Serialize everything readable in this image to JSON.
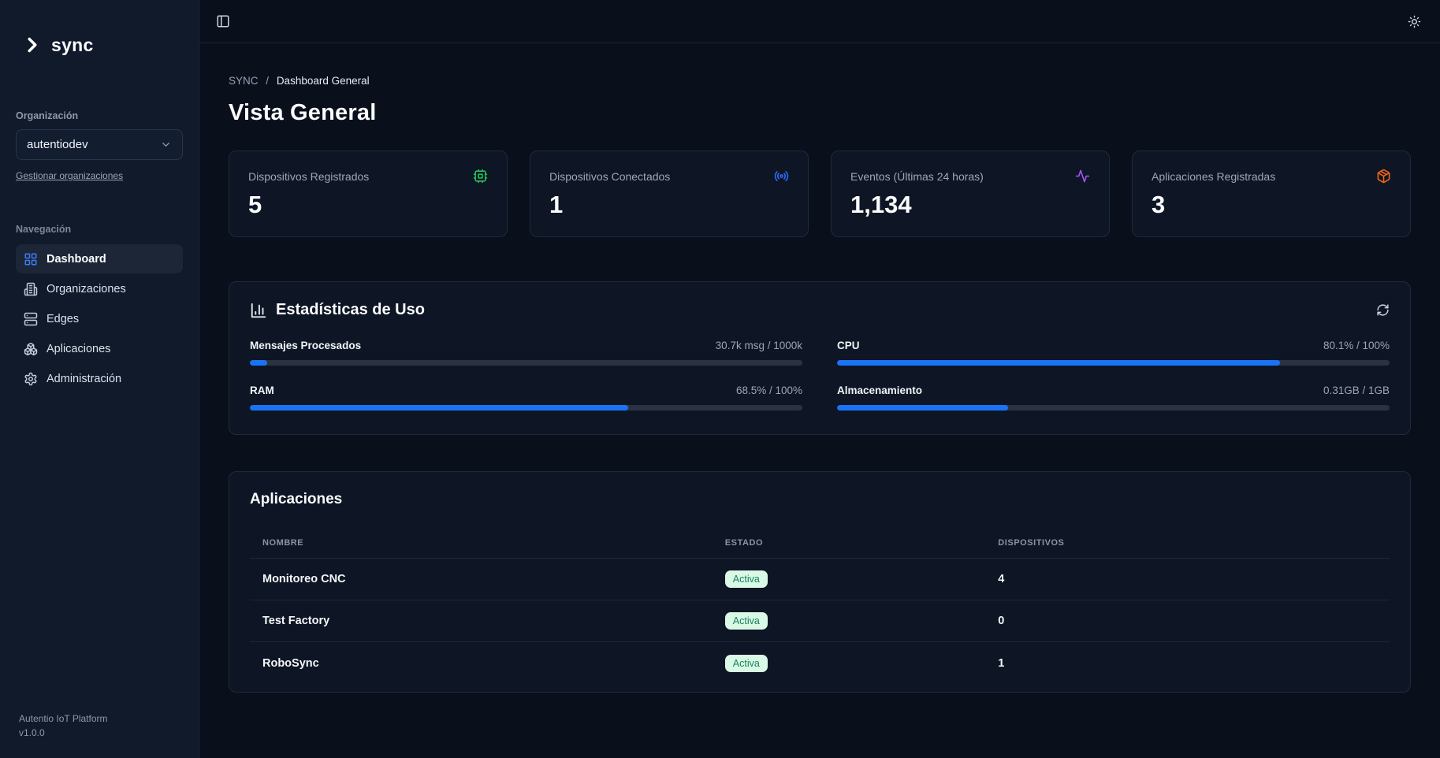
{
  "colors": {
    "bg_main": "#0a0f1c",
    "bg_sidebar": "#111a2b",
    "bg_card": "#0e1524",
    "accent_blue": "#1a73f5",
    "icon_green": "#22c55e",
    "icon_blue": "#2d6ef5",
    "icon_purple": "#a855f7",
    "icon_orange": "#f4661c",
    "badge_bg": "#d9f9e6",
    "badge_text": "#1a7f5a"
  },
  "sidebar": {
    "logo_text": "sync",
    "org_label": "Organización",
    "org_selected": "autentiodev",
    "manage_link": "Gestionar organizaciones",
    "nav_label": "Navegación",
    "nav_items": [
      {
        "label": "Dashboard",
        "icon": "layout-grid-icon",
        "active": true
      },
      {
        "label": "Organizaciones",
        "icon": "building-icon",
        "active": false
      },
      {
        "label": "Edges",
        "icon": "server-icon",
        "active": false
      },
      {
        "label": "Aplicaciones",
        "icon": "boxes-icon",
        "active": false
      },
      {
        "label": "Administración",
        "icon": "gear-icon",
        "active": false
      }
    ],
    "footer_line1": "Autentio IoT Platform",
    "footer_line2": "v1.0.0"
  },
  "breadcrumb": {
    "root": "SYNC",
    "separator": "/",
    "current": "Dashboard General"
  },
  "page_title": "Vista General",
  "stat_cards": [
    {
      "label": "Dispositivos Registrados",
      "value": "5",
      "icon": "cpu-chip-icon",
      "color": "#22c55e"
    },
    {
      "label": "Dispositivos Conectados",
      "value": "1",
      "icon": "radio-signal-icon",
      "color": "#2d6ef5"
    },
    {
      "label": "Eventos (Últimas 24 horas)",
      "value": "1,134",
      "icon": "activity-icon",
      "color": "#a855f7"
    },
    {
      "label": "Aplicaciones Registradas",
      "value": "3",
      "icon": "package-icon",
      "color": "#f4661c"
    }
  ],
  "usage": {
    "title": "Estadísticas de Uso",
    "metrics": [
      {
        "label": "Mensajes Procesados",
        "value_text": "30.7k msg / 1000k",
        "percent": 3.1
      },
      {
        "label": "CPU",
        "value_text": "80.1% / 100%",
        "percent": 80.1
      },
      {
        "label": "RAM",
        "value_text": "68.5% / 100%",
        "percent": 68.5
      },
      {
        "label": "Almacenamiento",
        "value_text": "0.31GB / 1GB",
        "percent": 31
      }
    ]
  },
  "applications": {
    "title": "Aplicaciones",
    "columns": [
      "NOMBRE",
      "ESTADO",
      "DISPOSITIVOS"
    ],
    "rows": [
      {
        "name": "Monitoreo CNC",
        "status": "Activa",
        "devices": "4"
      },
      {
        "name": "Test Factory",
        "status": "Activa",
        "devices": "0"
      },
      {
        "name": "RoboSync",
        "status": "Activa",
        "devices": "1"
      }
    ]
  }
}
